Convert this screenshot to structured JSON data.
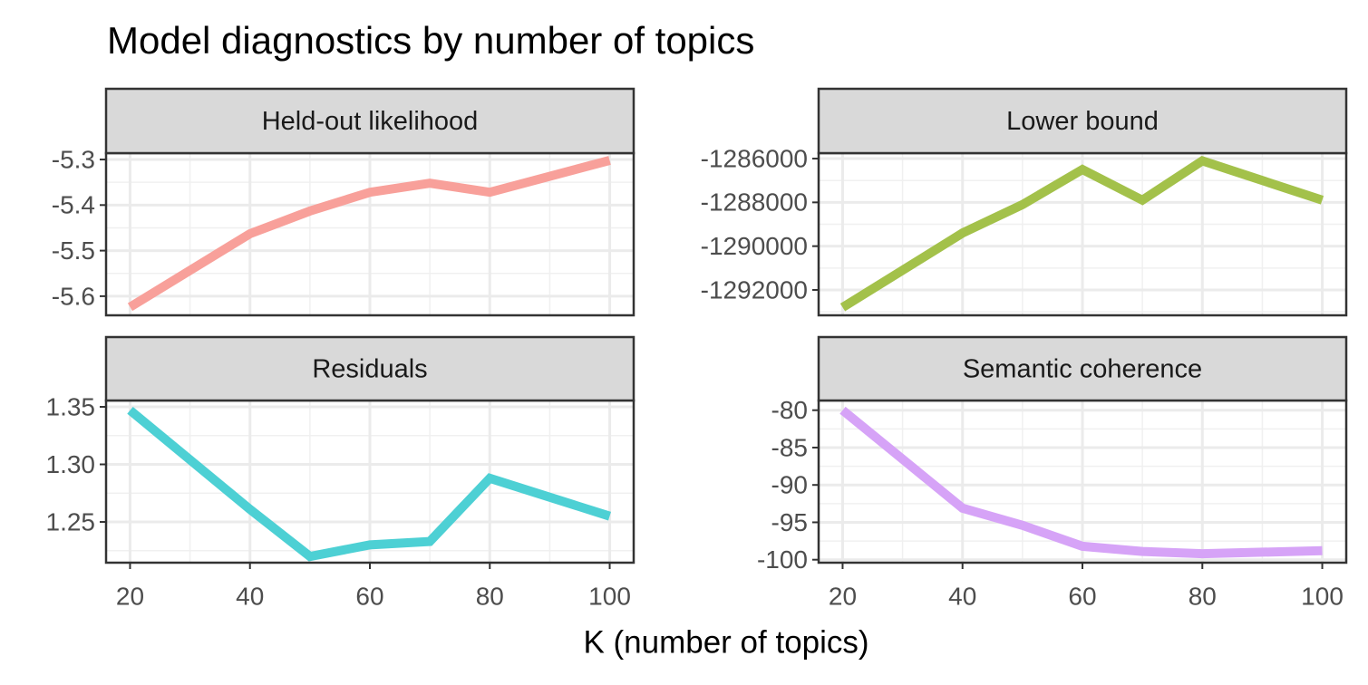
{
  "title": "Model diagnostics by number of topics",
  "xlabel": "K (number of topics)",
  "chart_data": [
    {
      "type": "line",
      "title": "Held-out likelihood",
      "color": "#f8a09a",
      "x": [
        20,
        40,
        50,
        60,
        70,
        80,
        100
      ],
      "values": [
        -5.624,
        -5.463,
        -5.413,
        -5.372,
        -5.352,
        -5.372,
        -5.302
      ],
      "xlim": [
        16,
        104
      ],
      "xticks": [
        20,
        40,
        60,
        80,
        100
      ],
      "ylim": [
        -5.642,
        -5.286
      ],
      "yticks": [
        -5.6,
        -5.5,
        -5.4,
        -5.3
      ],
      "grid": true
    },
    {
      "type": "line",
      "title": "Lower bound",
      "color": "#a3c14a",
      "x": [
        20,
        40,
        50,
        60,
        70,
        80,
        100
      ],
      "values": [
        -1292800,
        -1289400,
        -1288100,
        -1286500,
        -1287900,
        -1286100,
        -1287900
      ],
      "xlim": [
        16,
        104
      ],
      "xticks": [
        20,
        40,
        60,
        80,
        100
      ],
      "ylim": [
        -1293160,
        -1285750
      ],
      "yticks": [
        -1292000,
        -1290000,
        -1288000,
        -1286000
      ],
      "grid": true
    },
    {
      "type": "line",
      "title": "Residuals",
      "color": "#4dd0d4",
      "x": [
        20,
        40,
        50,
        60,
        70,
        80,
        100
      ],
      "values": [
        1.347,
        1.261,
        1.22,
        1.23,
        1.233,
        1.288,
        1.255
      ],
      "xlim": [
        16,
        104
      ],
      "xticks": [
        20,
        40,
        60,
        80,
        100
      ],
      "ylim": [
        1.2146,
        1.3555
      ],
      "yticks": [
        1.25,
        {
          "value": 1.3,
          "label": "1.30"
        },
        1.35
      ],
      "grid": true
    },
    {
      "type": "line",
      "title": "Semantic coherence",
      "color": "#d6a3f7",
      "x": [
        20,
        40,
        50,
        60,
        70,
        80,
        100
      ],
      "values": [
        -80,
        -93.1,
        -95.4,
        -98.2,
        -98.9,
        -99.2,
        -98.8
      ],
      "xlim": [
        16,
        104
      ],
      "xticks": [
        20,
        40,
        60,
        80,
        100
      ],
      "ylim": [
        -100.4,
        -78.7
      ],
      "yticks": [
        -100,
        -95,
        -90,
        -85,
        -80
      ],
      "grid": true
    }
  ]
}
